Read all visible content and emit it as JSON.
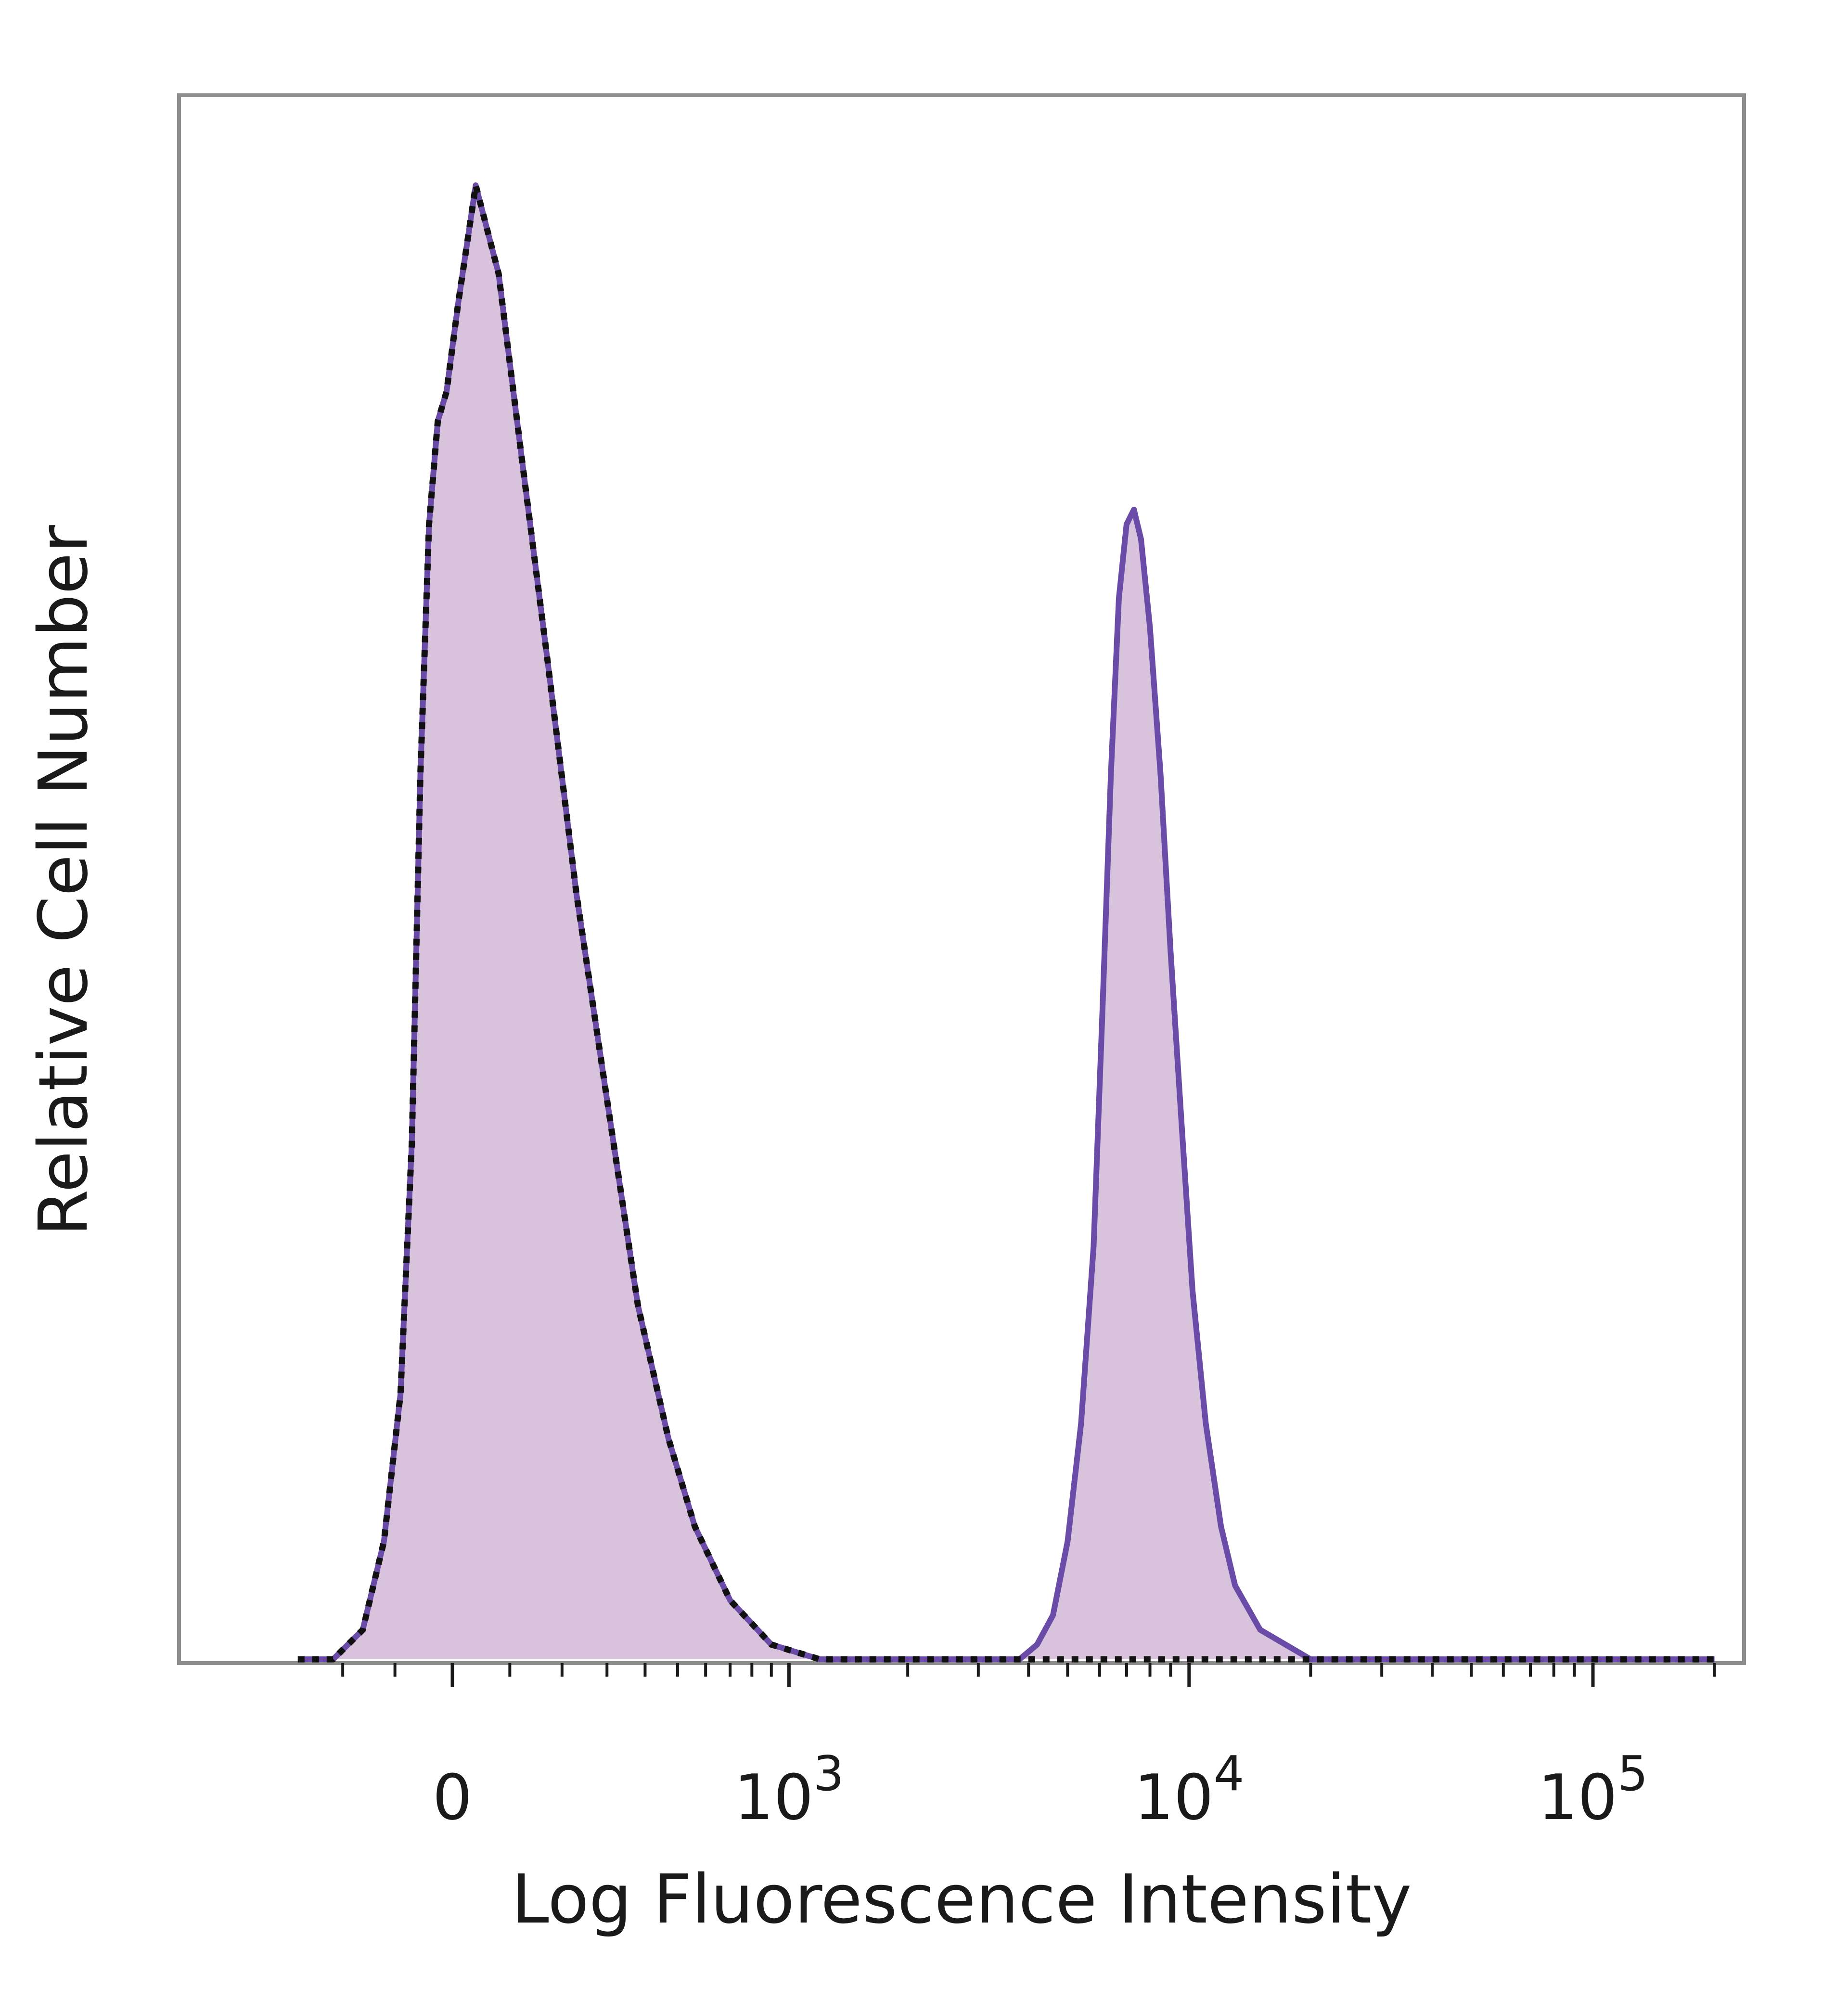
{
  "chart_data": {
    "type": "area",
    "title": "",
    "xlabel": "Log Fluorescence Intensity",
    "ylabel": "Relative Cell Number",
    "x_scale": "biexponential",
    "x_ticks": [
      {
        "value": 0,
        "base": "0",
        "exp": ""
      },
      {
        "value": 1000,
        "base": "10",
        "exp": "3"
      },
      {
        "value": 10000,
        "base": "10",
        "exp": "4"
      },
      {
        "value": 100000,
        "base": "10",
        "exp": "5"
      }
    ],
    "ylim": [
      0,
      100
    ],
    "grid": false,
    "legend": "none",
    "colors": {
      "stained_line": "#6a4ca8",
      "fill": "#d9c2dc",
      "control_line": "#111111",
      "frame": "#8c8c8c"
    },
    "series": [
      {
        "style": "filled-solid",
        "x": [
          -300,
          -220,
          -160,
          -120,
          -90,
          -70,
          -55,
          -40,
          -25,
          -10,
          10,
          40,
          80,
          120,
          170,
          230,
          300,
          380,
          470,
          560,
          700,
          900,
          1200,
          1600,
          2100,
          2600,
          3000,
          3400,
          3800,
          4200,
          4600,
          5000,
          5400,
          5800,
          6100,
          6400,
          6700,
          7000,
          7300,
          7600,
          8000,
          8500,
          9000,
          9600,
          10200,
          11000,
          12000,
          13000,
          15000,
          20000,
          40000,
          100000,
          200000
        ],
        "y": [
          0,
          0,
          2,
          8,
          18,
          35,
          60,
          77,
          84,
          86,
          92,
          100,
          94,
          82,
          68,
          52,
          38,
          24,
          15,
          9,
          4,
          1,
          0,
          0,
          0,
          0,
          0,
          0,
          0,
          1,
          3,
          8,
          16,
          28,
          44,
          60,
          72,
          77,
          78,
          76,
          70,
          60,
          48,
          36,
          25,
          16,
          9,
          5,
          2,
          0,
          0,
          0,
          0
        ]
      },
      {
        "style": "dotted",
        "x": [
          -300,
          -220,
          -160,
          -120,
          -90,
          -70,
          -55,
          -40,
          -25,
          -10,
          10,
          40,
          80,
          120,
          170,
          230,
          300,
          380,
          470,
          560,
          700,
          900,
          1200,
          1600,
          2100,
          2600,
          3000,
          4000,
          6000,
          10000,
          20000,
          40000,
          100000,
          200000
        ],
        "y": [
          0,
          0,
          2,
          8,
          18,
          35,
          60,
          77,
          84,
          86,
          92,
          100,
          94,
          82,
          68,
          52,
          38,
          24,
          15,
          9,
          4,
          1,
          0,
          0,
          0,
          0,
          0,
          0,
          0,
          0,
          0,
          0,
          0,
          0
        ]
      }
    ]
  }
}
